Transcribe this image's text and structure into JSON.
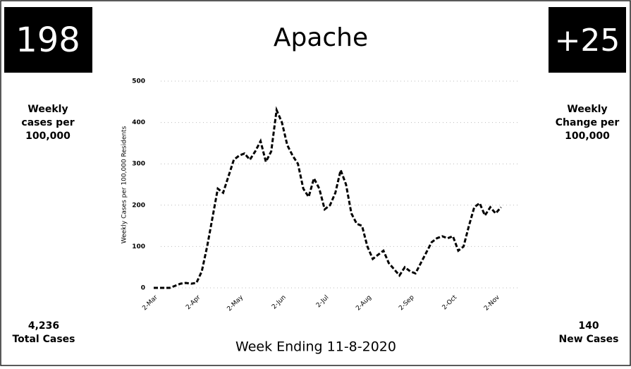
{
  "chart_data": {
    "type": "line",
    "title": "Apache",
    "x_label": "Week Ending 11-8-2020",
    "y_label": "Weekly Cases per 100,000 Residents",
    "categories": [
      "2-Mar",
      null,
      null,
      null,
      null,
      null,
      null,
      null,
      "2-Apr",
      null,
      null,
      null,
      null,
      null,
      null,
      null,
      "2-May",
      null,
      null,
      null,
      null,
      null,
      null,
      null,
      "2-Jun",
      null,
      null,
      null,
      null,
      null,
      null,
      null,
      "2-Jul",
      null,
      null,
      null,
      null,
      null,
      null,
      null,
      "2-Aug",
      null,
      null,
      null,
      null,
      null,
      null,
      null,
      "2-Sep",
      null,
      null,
      null,
      null,
      null,
      null,
      null,
      "2-Oct",
      null,
      null,
      null,
      null,
      null,
      null,
      null,
      "2-Nov",
      null
    ],
    "values": [
      0,
      0,
      0,
      0,
      5,
      10,
      12,
      10,
      12,
      40,
      100,
      170,
      240,
      230,
      270,
      310,
      320,
      325,
      310,
      330,
      355,
      305,
      330,
      430,
      400,
      345,
      320,
      300,
      240,
      220,
      265,
      240,
      190,
      200,
      230,
      285,
      250,
      180,
      155,
      150,
      100,
      70,
      80,
      90,
      60,
      45,
      30,
      50,
      40,
      35,
      60,
      85,
      110,
      120,
      125,
      120,
      125,
      90,
      100,
      150,
      195,
      205,
      175,
      195,
      180,
      195
    ],
    "color": "#000000",
    "ylim": [
      0,
      500
    ],
    "yticks": [
      0,
      100,
      200,
      300,
      400,
      500
    ],
    "grid": true
  },
  "kpis": {
    "left": {
      "value": "198",
      "label": [
        "Weekly",
        "cases per",
        "100,000"
      ]
    },
    "right": {
      "value": "+25",
      "label": [
        "Weekly",
        "Change per",
        "100,000"
      ]
    },
    "bottom_left": {
      "value": "4,236",
      "label": "Total Cases"
    },
    "bottom_right": {
      "value": "140",
      "label": "New Cases"
    }
  }
}
